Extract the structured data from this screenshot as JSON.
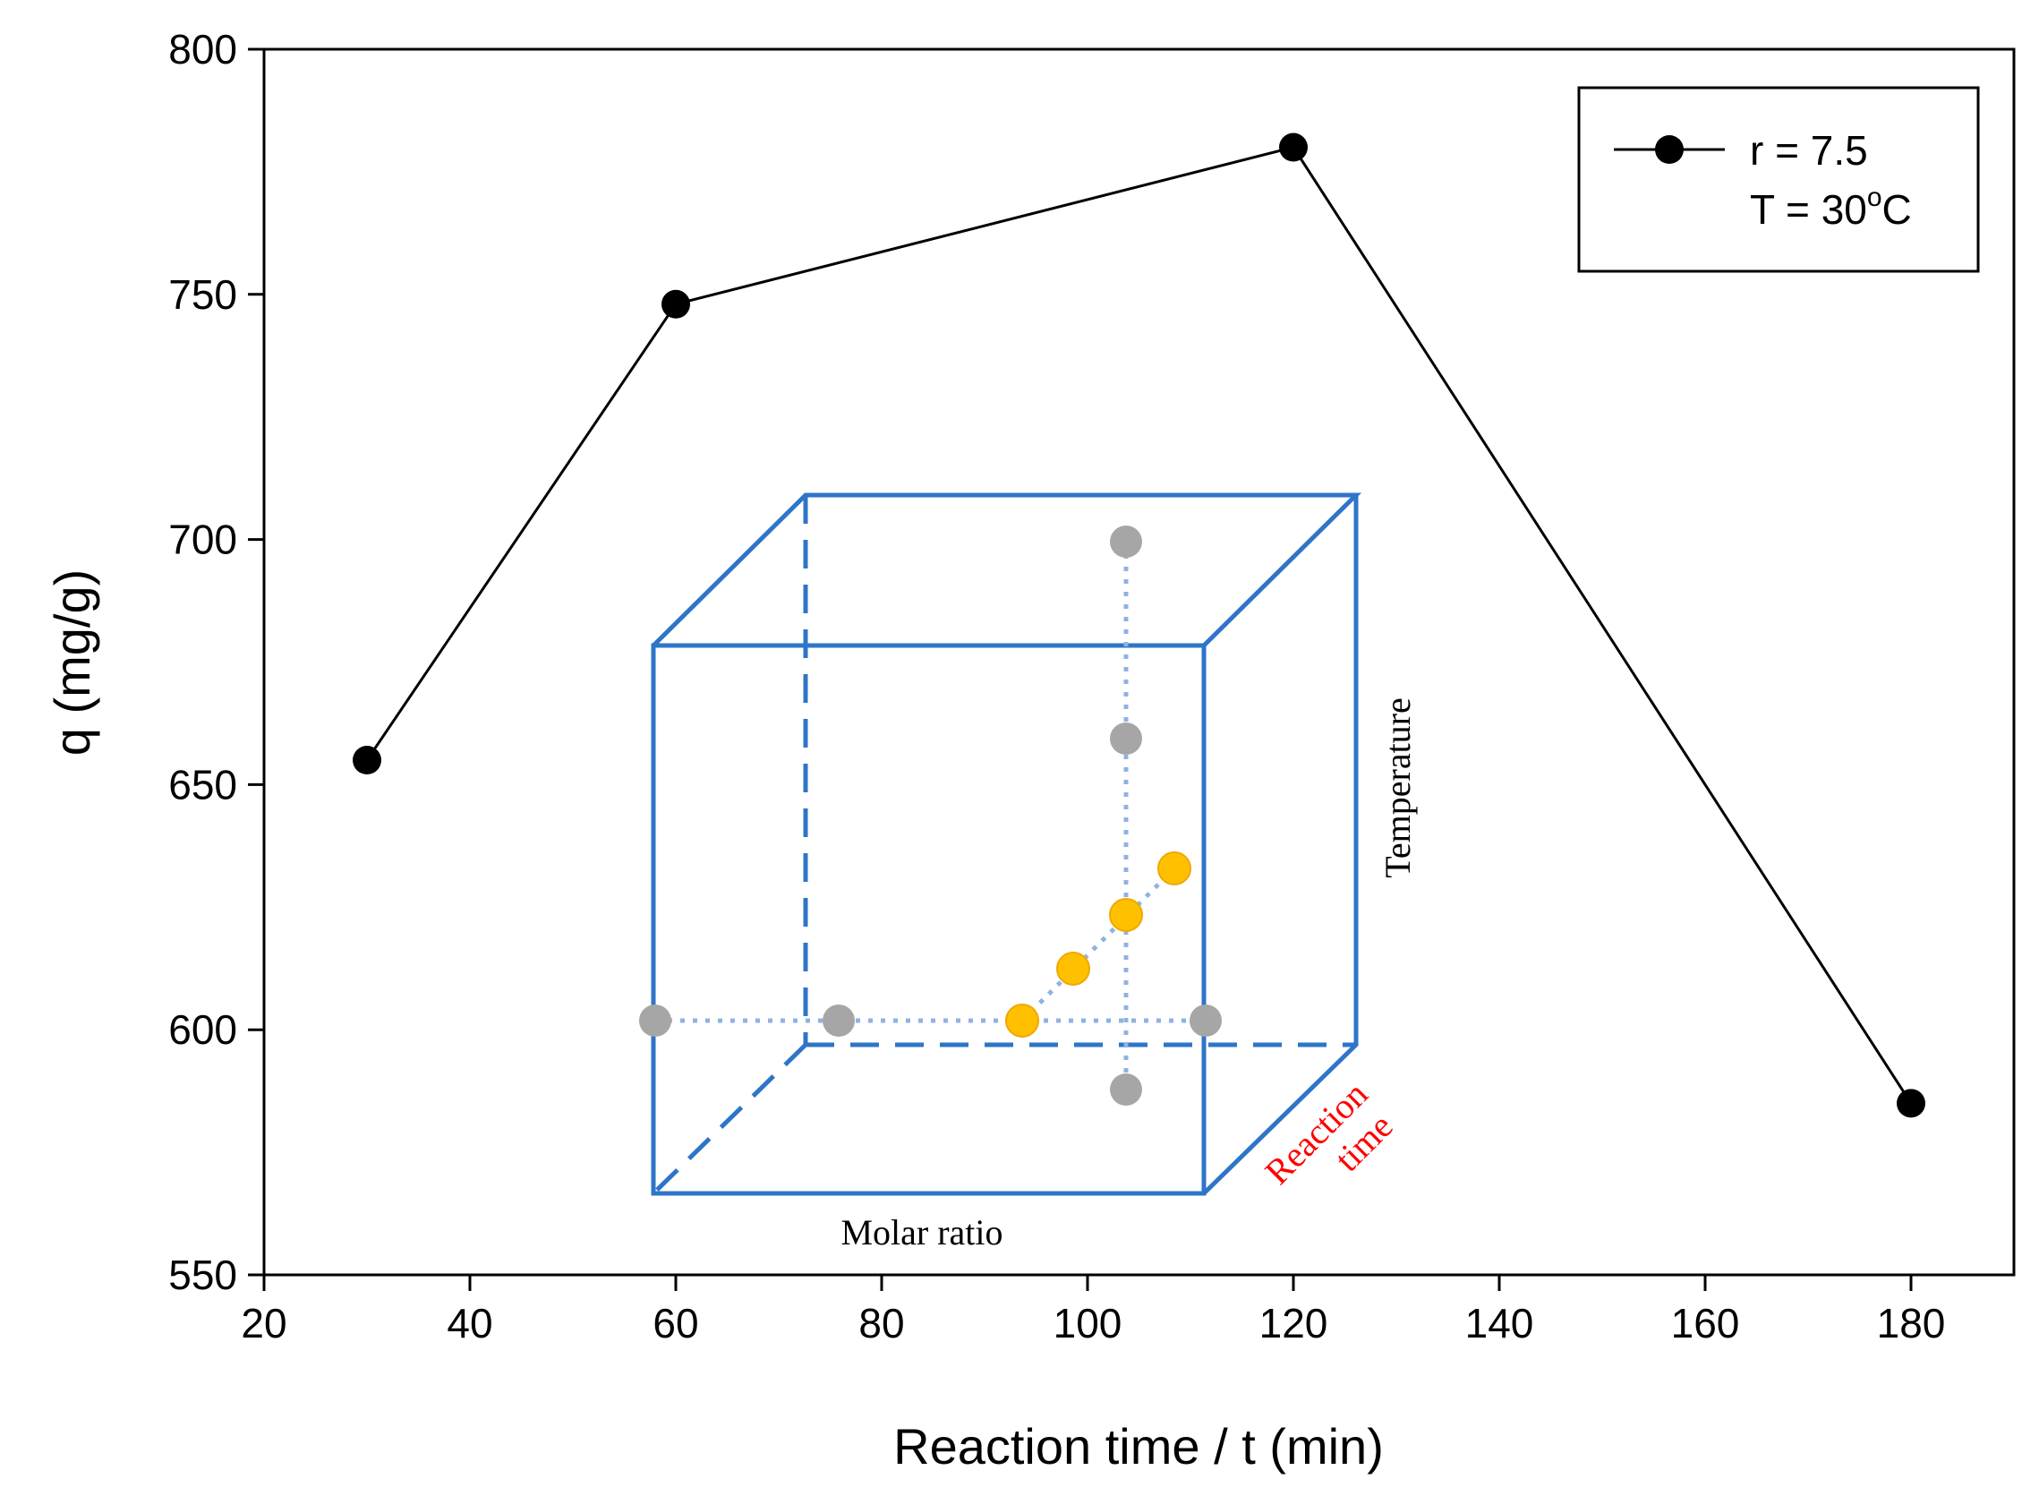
{
  "chart_data": {
    "type": "line",
    "title": "",
    "xlabel": "Reaction time / t (min)",
    "ylabel": "q (mg/g)",
    "xlim": [
      20,
      190
    ],
    "ylim": [
      550,
      800
    ],
    "xticks": [
      20,
      40,
      60,
      80,
      100,
      120,
      140,
      160,
      180
    ],
    "yticks": [
      550,
      600,
      650,
      700,
      750,
      800
    ],
    "grid": false,
    "legend_position": "top-right",
    "series": [
      {
        "name": "r = 7.5",
        "name_line2_prefix": "T = 30",
        "name_line2_sup": "o",
        "name_line2_suffix": "C",
        "color": "#000000",
        "x": [
          30,
          60,
          120,
          180
        ],
        "y": [
          655,
          748,
          780,
          585
        ]
      }
    ],
    "inset": {
      "description_labels": {
        "x_axis": "Molar ratio",
        "y_axis": "Temperature",
        "z_axis_line1": "Reaction",
        "z_axis_line2": "time"
      },
      "box_color": "#2e75c8",
      "dotted_color": "#8fb3e0",
      "grey_point_color": "#a6a6a6",
      "highlight_point_color": "#ffc000",
      "label_color_red": "#ff0000"
    }
  }
}
